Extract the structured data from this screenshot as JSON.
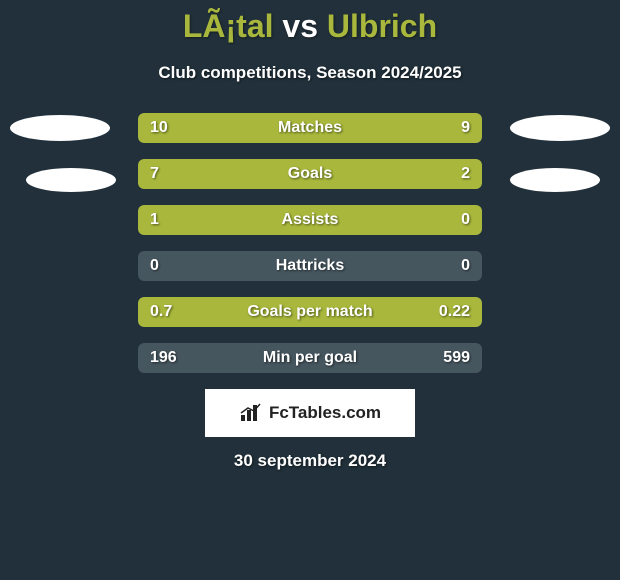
{
  "background_color": "#21303a",
  "title_parts": {
    "player1": "LÃ¡tal",
    "vs": "vs",
    "player2": "Ulbrich"
  },
  "title_colors": {
    "player1": "#a9b83c",
    "vs": "#ffffff",
    "player2": "#a9b83c"
  },
  "subtitle": "Club competitions, Season 2024/2025",
  "subtitle_color": "#ffffff",
  "date": "30 september 2024",
  "date_color": "#ffffff",
  "badge_text": "FcTables.com",
  "track_color": "#46565f",
  "fill_color": "#a9b83c",
  "value_color": "#ffffff",
  "rows": [
    {
      "label": "Matches",
      "left": "10",
      "right": "9",
      "left_pct": 52,
      "right_pct": 48,
      "left_fill": true,
      "right_fill": true
    },
    {
      "label": "Goals",
      "left": "7",
      "right": "2",
      "left_pct": 75,
      "right_pct": 25,
      "left_fill": true,
      "right_fill": true
    },
    {
      "label": "Assists",
      "left": "1",
      "right": "0",
      "left_pct": 78,
      "right_pct": 22,
      "left_fill": true,
      "right_fill": true
    },
    {
      "label": "Hattricks",
      "left": "0",
      "right": "0",
      "left_pct": 0,
      "right_pct": 0,
      "left_fill": false,
      "right_fill": false
    },
    {
      "label": "Goals per match",
      "left": "0.7",
      "right": "0.22",
      "left_pct": 76,
      "right_pct": 24,
      "left_fill": true,
      "right_fill": true
    },
    {
      "label": "Min per goal",
      "left": "196",
      "right": "599",
      "left_pct": 0,
      "right_pct": 0,
      "left_fill": false,
      "right_fill": false
    }
  ]
}
